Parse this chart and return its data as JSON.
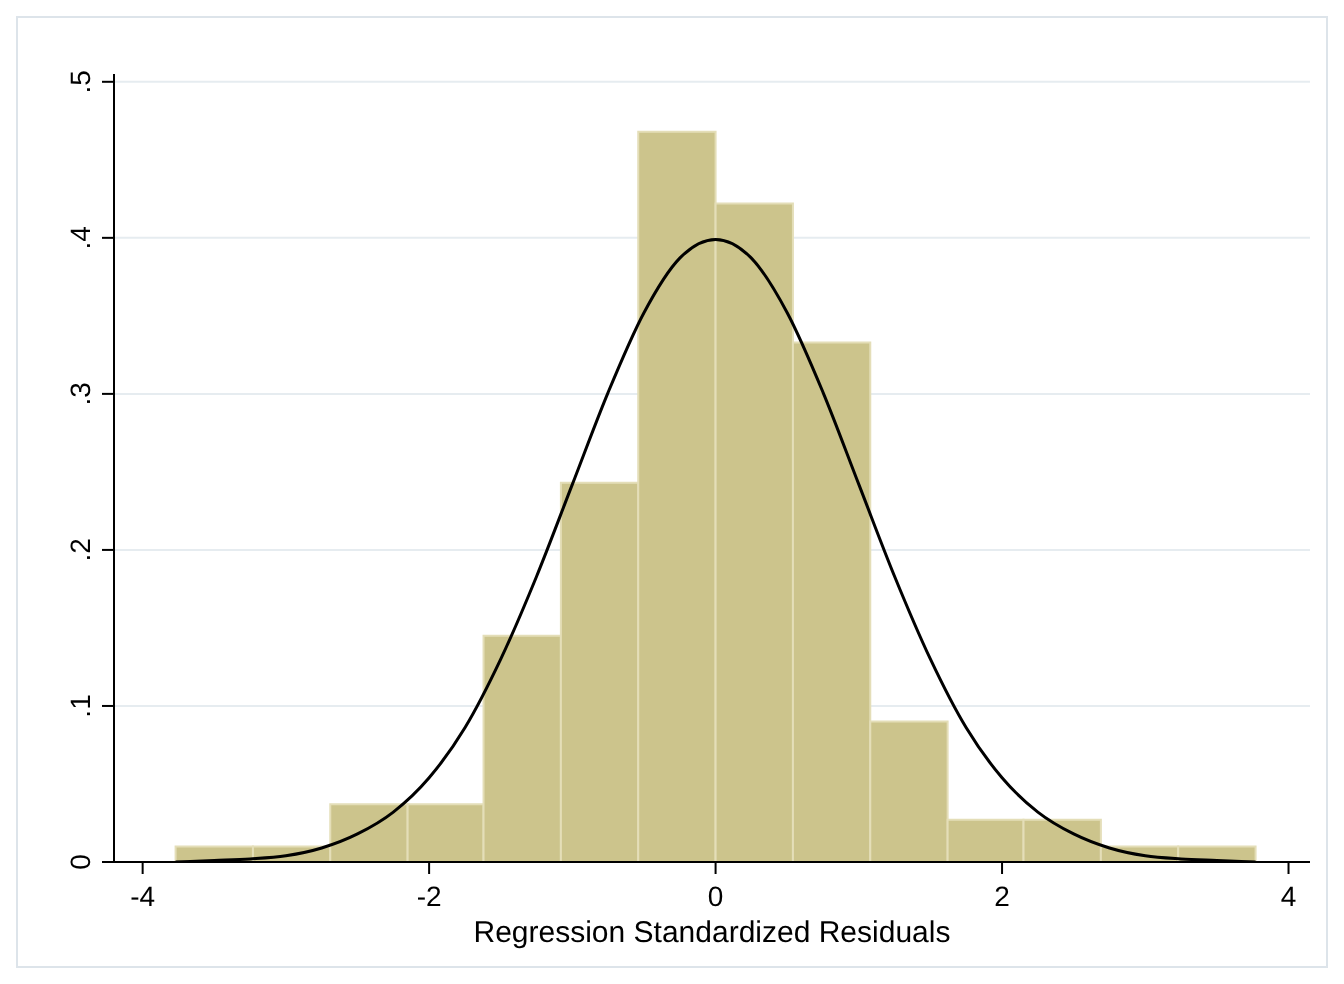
{
  "chart_data": {
    "type": "histogram",
    "xlabel": "Regression Standardized Residuals",
    "bins": [
      -3.77,
      -3.23,
      -2.69,
      -2.15,
      -1.62,
      -1.08,
      -0.54,
      0,
      0.54,
      1.08,
      1.62,
      2.15,
      2.69,
      3.23,
      3.77
    ],
    "values": [
      0.01,
      0.01,
      0.037,
      0.037,
      0.145,
      0.243,
      0.468,
      0.422,
      0.333,
      0.09,
      0.027,
      0.027,
      0.01,
      0.01
    ],
    "color": "#ccc48c",
    "series": [
      {
        "type": "line",
        "color": "#000000",
        "x": [
          -3.77,
          -3.5,
          -3.25,
          -3,
          -2.75,
          -2.5,
          -2.25,
          -2,
          -1.75,
          -1.5,
          -1.25,
          -1,
          -0.75,
          -0.5,
          -0.25,
          0,
          0.25,
          0.5,
          0.75,
          1,
          1.25,
          1.5,
          1.75,
          2,
          2.25,
          2.5,
          2.75,
          3,
          3.25,
          3.5,
          3.77
        ],
        "values": [
          0,
          0.001,
          0.002,
          0.004,
          0.009,
          0.018,
          0.032,
          0.054,
          0.086,
          0.13,
          0.183,
          0.242,
          0.301,
          0.352,
          0.387,
          0.399,
          0.387,
          0.352,
          0.301,
          0.242,
          0.183,
          0.13,
          0.086,
          0.054,
          0.032,
          0.018,
          0.009,
          0.004,
          0.002,
          0.001,
          0
        ]
      }
    ],
    "xlim": [
      -4.2,
      4.15
    ],
    "xticks": [
      -4,
      -2,
      0,
      2,
      4
    ],
    "ylim": [
      0,
      0.505
    ],
    "yticks": [
      {
        "value": 0,
        "label": "0"
      },
      {
        "value": 0.1,
        "label": ".1"
      },
      {
        "value": 0.2,
        "label": ".2"
      },
      {
        "value": 0.3,
        "label": ".3"
      },
      {
        "value": 0.4,
        "label": ".4"
      },
      {
        "value": 0.5,
        "label": ".5"
      }
    ],
    "grid": "y"
  }
}
